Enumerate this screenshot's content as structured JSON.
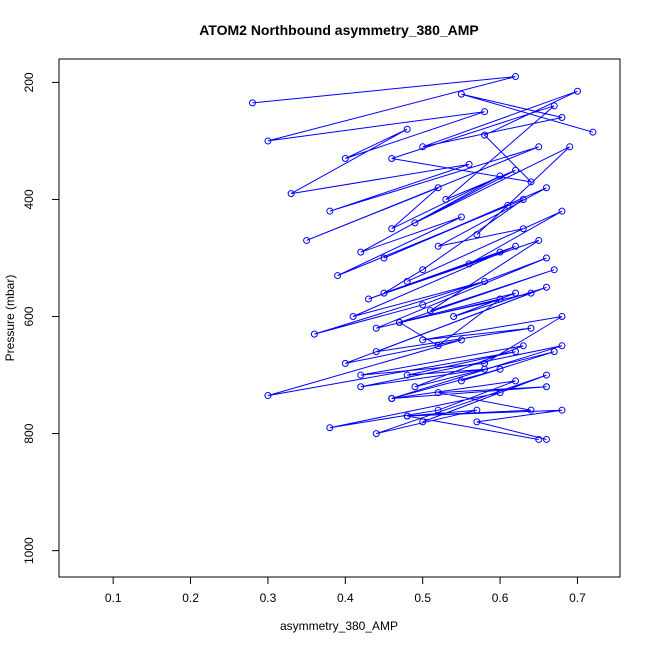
{
  "chart_data": {
    "type": "line",
    "title": "ATOM2 Northbound asymmetry_380_AMP",
    "xlabel": "asymmetry_380_AMP",
    "ylabel": "Pressure (mbar)",
    "xlim": [
      0.03,
      0.755
    ],
    "ylim": [
      1045,
      160
    ],
    "y_reversed": true,
    "x_ticks": [
      "0.1",
      "0.2",
      "0.3",
      "0.4",
      "0.5",
      "0.6",
      "0.7"
    ],
    "y_ticks": [
      "200",
      "400",
      "600",
      "800",
      "1000"
    ],
    "grid": false,
    "legend": "none",
    "series": [
      {
        "color": "#0000ff",
        "marker": "circle-open",
        "x": [
          0.28,
          0.62,
          0.3,
          0.58,
          0.4,
          0.48,
          0.33,
          0.56,
          0.38,
          0.65,
          0.35,
          0.52,
          0.46,
          0.6,
          0.42,
          0.55,
          0.39,
          0.63,
          0.5,
          0.45,
          0.62,
          0.41,
          0.58,
          0.36,
          0.5,
          0.66,
          0.44,
          0.6,
          0.52,
          0.47,
          0.64,
          0.4,
          0.55,
          0.3,
          0.62,
          0.48,
          0.58,
          0.42,
          0.68,
          0.46,
          0.62,
          0.52,
          0.38,
          0.6,
          0.5,
          0.66,
          0.44,
          0.57,
          0.48,
          0.65
        ],
        "y": [
          235,
          190,
          300,
          250,
          330,
          280,
          390,
          340,
          420,
          310,
          470,
          380,
          450,
          360,
          490,
          430,
          530,
          400,
          520,
          560,
          480,
          600,
          540,
          630,
          580,
          500,
          620,
          570,
          650,
          610,
          560,
          680,
          640,
          735,
          660,
          700,
          690,
          720,
          650,
          740,
          710,
          760,
          790,
          730,
          780,
          700,
          800,
          760,
          770,
          810
        ]
      },
      {
        "color": "#0000ff",
        "marker": "circle-open",
        "x": [
          0.72,
          0.55,
          0.68,
          0.5,
          0.7,
          0.58,
          0.64,
          0.46,
          0.67,
          0.53,
          0.62,
          0.49,
          0.69,
          0.57,
          0.61,
          0.45,
          0.66,
          0.52,
          0.63,
          0.48,
          0.68,
          0.56,
          0.6,
          0.43,
          0.65,
          0.51,
          0.67,
          0.47,
          0.62,
          0.54,
          0.66,
          0.44,
          0.64,
          0.5,
          0.68,
          0.58,
          0.42,
          0.63,
          0.49,
          0.67,
          0.55,
          0.6,
          0.46,
          0.66,
          0.52,
          0.64,
          0.48,
          0.68,
          0.57,
          0.66
        ],
        "y": [
          285,
          220,
          260,
          310,
          215,
          290,
          370,
          330,
          240,
          400,
          350,
          440,
          310,
          460,
          410,
          500,
          380,
          480,
          450,
          540,
          420,
          510,
          490,
          570,
          470,
          590,
          520,
          610,
          560,
          600,
          550,
          660,
          620,
          640,
          600,
          680,
          700,
          650,
          720,
          660,
          710,
          690,
          740,
          720,
          730,
          760,
          770,
          760,
          780,
          810
        ]
      }
    ]
  }
}
